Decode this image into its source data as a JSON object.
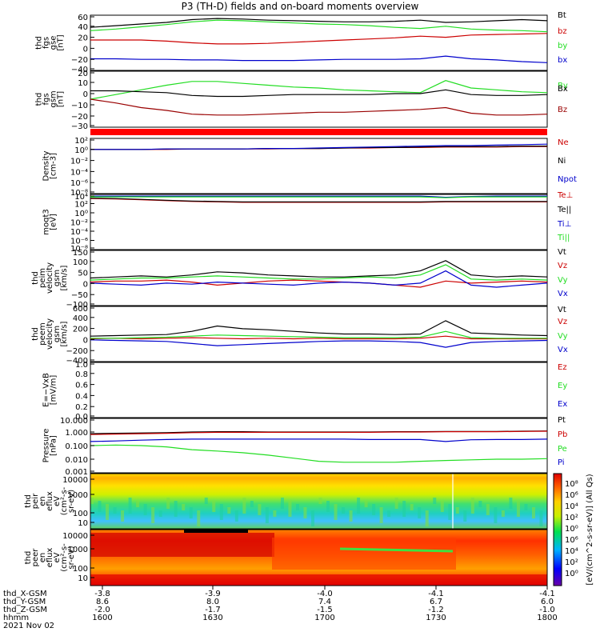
{
  "title": "P3 (TH-D) fields and on-board moments overview",
  "date": "2021 Nov 02",
  "colors": {
    "black": "#000000",
    "red": "#cc0000",
    "green": "#22dd22",
    "blue": "#0000cc",
    "darkred": "#990000"
  },
  "chart_data": [
    {
      "type": "line",
      "ylabel": [
        "thd",
        "fgs",
        "gse",
        "[nT]"
      ],
      "yticks": [
        "60",
        "40",
        "20",
        "0",
        "−20",
        "−40"
      ],
      "ylim": [
        -40,
        60
      ],
      "legend": [
        "Bt",
        "bz",
        "by",
        "bx"
      ],
      "series": [
        {
          "name": "Bt",
          "color": "black",
          "values": [
            38,
            41,
            44,
            47,
            52,
            54,
            53,
            51,
            50,
            49,
            48,
            48,
            49,
            51,
            47,
            48,
            50,
            52,
            50
          ]
        },
        {
          "name": "bz",
          "color": "red",
          "values": [
            15,
            15,
            15,
            13,
            10,
            8,
            8,
            9,
            11,
            13,
            15,
            17,
            19,
            22,
            20,
            24,
            25,
            26,
            27
          ]
        },
        {
          "name": "by",
          "color": "green",
          "values": [
            32,
            35,
            39,
            43,
            48,
            51,
            50,
            48,
            46,
            44,
            43,
            41,
            38,
            36,
            40,
            35,
            33,
            32,
            30
          ]
        },
        {
          "name": "bx",
          "color": "blue",
          "values": [
            -19,
            -19,
            -20,
            -20,
            -21,
            -21,
            -22,
            -22,
            -22,
            -21,
            -20,
            -20,
            -20,
            -19,
            -14,
            -19,
            -21,
            -24,
            -26
          ]
        }
      ]
    },
    {
      "type": "line",
      "ylabel": [
        "thd",
        "fgs",
        "gsm",
        "[nT]"
      ],
      "yticks": [
        "20",
        "10",
        "0",
        "−10",
        "−20",
        "−30"
      ],
      "ylim": [
        -35,
        25
      ],
      "legend": [
        "By",
        "Bx",
        "Bz"
      ],
      "series": [
        {
          "name": "By",
          "color": "green",
          "values": [
            -5,
            0,
            5,
            10,
            14,
            14,
            12,
            10,
            8,
            7,
            5,
            4,
            3,
            2,
            15,
            7,
            5,
            3,
            2
          ]
        },
        {
          "name": "Bx",
          "color": "black",
          "values": [
            4,
            4,
            3,
            2,
            -1,
            -2,
            -2,
            -1,
            0,
            0,
            0,
            0,
            1,
            1,
            5,
            0,
            -1,
            -1,
            0
          ]
        },
        {
          "name": "Bz",
          "color": "darkred",
          "values": [
            -5,
            -9,
            -14,
            -17,
            -21,
            -22,
            -22,
            -21,
            -20,
            -19,
            -19,
            -18,
            -17,
            -16,
            -14,
            -20,
            -22,
            -22,
            -21
          ]
        }
      ]
    },
    {
      "type": "line",
      "ylabel": [
        "Density",
        "[cm-3]"
      ],
      "yticks": [
        "10²",
        "10⁰",
        "10⁻²",
        "10⁻⁴",
        "10⁻⁶",
        "10⁻⁸"
      ],
      "log": true,
      "ylim": [
        -9,
        2.5
      ],
      "legend": [
        "Ne",
        "Ni",
        "Npot"
      ],
      "series": [
        {
          "name": "Ne",
          "color": "red",
          "values": [
            0.2,
            0.2,
            0.2,
            0.2,
            0.3,
            0.3,
            0.3,
            0.3,
            0.4,
            0.4,
            0.5,
            0.5,
            0.6,
            0.6,
            0.7,
            0.7,
            0.7,
            0.8,
            0.8
          ]
        },
        {
          "name": "Ni",
          "color": "black",
          "values": [
            0.2,
            0.2,
            0.2,
            0.3,
            0.3,
            0.3,
            0.3,
            0.4,
            0.4,
            0.4,
            0.5,
            0.6,
            0.6,
            0.7,
            0.8,
            0.8,
            0.8,
            0.9,
            0.9
          ]
        },
        {
          "name": "Npot",
          "color": "blue",
          "values": [
            0.2,
            0.2,
            0.2,
            0.3,
            0.3,
            0.3,
            0.3,
            0.4,
            0.4,
            0.5,
            0.6,
            0.7,
            0.8,
            0.9,
            1.0,
            1.0,
            1.1,
            1.2,
            1.3
          ]
        }
      ]
    },
    {
      "type": "line",
      "ylabel": [
        "moqt3",
        "[eV]"
      ],
      "yticks": [
        "10⁴",
        "10²",
        "10⁰",
        "10⁻²",
        "10⁻⁴",
        "10⁻⁶",
        "10⁻⁸"
      ],
      "log": true,
      "ylim": [
        -9,
        4.3
      ],
      "legend": [
        "Te⊥",
        "Te||",
        "Ti⊥",
        "Ti||"
      ],
      "series": [
        {
          "name": "Te⊥",
          "color": "red",
          "values": [
            3.3,
            3.2,
            3.0,
            2.8,
            2.6,
            2.5,
            2.4,
            2.4,
            2.4,
            2.4,
            2.4,
            2.4,
            2.4,
            2.4,
            2.5,
            2.5,
            2.5,
            2.5,
            2.5
          ]
        },
        {
          "name": "Te||",
          "color": "black",
          "values": [
            3.4,
            3.3,
            3.1,
            2.9,
            2.7,
            2.6,
            2.5,
            2.5,
            2.5,
            2.5,
            2.5,
            2.5,
            2.5,
            2.5,
            2.6,
            2.6,
            2.6,
            2.6,
            2.6
          ]
        },
        {
          "name": "Ti⊥",
          "color": "blue",
          "values": [
            3.9,
            3.9,
            3.9,
            3.9,
            3.9,
            3.9,
            3.9,
            3.9,
            3.9,
            3.9,
            3.9,
            3.9,
            3.9,
            3.9,
            3.6,
            3.8,
            3.9,
            3.9,
            3.9
          ]
        },
        {
          "name": "Ti||",
          "color": "green",
          "values": [
            3.7,
            3.7,
            3.7,
            3.7,
            3.7,
            3.7,
            3.7,
            3.7,
            3.7,
            3.7,
            3.7,
            3.7,
            3.7,
            3.7,
            3.5,
            3.7,
            3.7,
            3.7,
            3.7
          ]
        }
      ]
    },
    {
      "type": "line",
      "ylabel": [
        "thd",
        "peim",
        "velocity",
        "gsm",
        "[km/s]"
      ],
      "yticks": [
        "150",
        "100",
        "50",
        "0",
        "−50",
        "−100"
      ],
      "ylim": [
        -110,
        160
      ],
      "legend": [
        "Vt",
        "Vz",
        "Vy",
        "Vx"
      ],
      "series": [
        {
          "name": "Vt",
          "color": "black",
          "values": [
            25,
            30,
            35,
            30,
            40,
            55,
            50,
            40,
            35,
            30,
            30,
            35,
            40,
            60,
            110,
            40,
            30,
            35,
            30
          ]
        },
        {
          "name": "Vz",
          "color": "red",
          "values": [
            5,
            10,
            10,
            15,
            5,
            -10,
            0,
            10,
            15,
            10,
            5,
            0,
            -10,
            -20,
            10,
            0,
            5,
            10,
            5
          ]
        },
        {
          "name": "Vy",
          "color": "green",
          "values": [
            15,
            20,
            25,
            25,
            30,
            35,
            30,
            25,
            20,
            20,
            25,
            30,
            25,
            40,
            90,
            20,
            15,
            20,
            15
          ]
        },
        {
          "name": "Vx",
          "color": "blue",
          "values": [
            0,
            -5,
            -10,
            0,
            -5,
            5,
            0,
            -5,
            -10,
            0,
            5,
            0,
            -10,
            0,
            60,
            -10,
            -20,
            -10,
            0
          ]
        }
      ]
    },
    {
      "type": "line",
      "ylabel": [
        "thd",
        "peem",
        "velocity",
        "gsm",
        "[km/s]"
      ],
      "yticks": [
        "600",
        "400",
        "200",
        "0",
        "−200",
        "−400"
      ],
      "ylim": [
        -420,
        620
      ],
      "legend": [
        "Vt",
        "Vz",
        "Vy",
        "Vx"
      ],
      "series": [
        {
          "name": "Vt",
          "color": "black",
          "values": [
            60,
            70,
            80,
            90,
            150,
            250,
            200,
            180,
            150,
            120,
            100,
            100,
            90,
            100,
            350,
            120,
            100,
            80,
            70
          ]
        },
        {
          "name": "Vz",
          "color": "red",
          "values": [
            10,
            20,
            10,
            20,
            30,
            20,
            10,
            20,
            10,
            20,
            10,
            10,
            10,
            20,
            60,
            10,
            10,
            10,
            10
          ]
        },
        {
          "name": "Vy",
          "color": "green",
          "values": [
            20,
            20,
            30,
            40,
            60,
            80,
            70,
            60,
            50,
            40,
            30,
            30,
            30,
            40,
            150,
            30,
            20,
            20,
            20
          ]
        },
        {
          "name": "Vx",
          "color": "blue",
          "values": [
            -10,
            -20,
            -30,
            -40,
            -80,
            -120,
            -100,
            -80,
            -60,
            -40,
            -30,
            -30,
            -40,
            -60,
            -150,
            -60,
            -40,
            -30,
            -20
          ]
        }
      ]
    },
    {
      "type": "line",
      "ylabel": [
        "E=−VxB",
        "[mV/m]"
      ],
      "yticks": [
        "1.0",
        "0.8",
        "0.6",
        "0.4",
        "0.2",
        "0.0"
      ],
      "ylim": [
        0,
        1
      ],
      "legend": [
        "Ez",
        "Ey",
        "Ex"
      ],
      "series": []
    },
    {
      "type": "line",
      "ylabel": [
        "Pressure",
        "[nPa]"
      ],
      "yticks": [
        "10.000",
        "1.000",
        "0.100",
        "0.010",
        "0.001"
      ],
      "log": true,
      "ylim": [
        -3,
        1
      ],
      "legend": [
        "Pt",
        "Pb",
        "Pe",
        "Pi"
      ],
      "series": [
        {
          "name": "Pt",
          "color": "black",
          "values": [
            0.75,
            0.8,
            0.85,
            0.9,
            1.0,
            1.05,
            1.05,
            1.0,
            1.0,
            1.0,
            1.0,
            1.0,
            1.05,
            1.05,
            1.1,
            1.1,
            1.1,
            1.15,
            1.2
          ]
        },
        {
          "name": "Pb",
          "color": "red",
          "values": [
            0.65,
            0.7,
            0.75,
            0.8,
            0.9,
            0.95,
            0.95,
            0.95,
            0.95,
            0.95,
            0.95,
            0.95,
            1.0,
            1.0,
            1.05,
            1.05,
            1.05,
            1.1,
            1.15
          ]
        },
        {
          "name": "Pe",
          "color": "green",
          "values": [
            0.1,
            0.11,
            0.1,
            0.08,
            0.05,
            0.04,
            0.03,
            0.02,
            0.012,
            0.007,
            0.006,
            0.006,
            0.006,
            0.007,
            0.008,
            0.009,
            0.01,
            0.01,
            0.011
          ]
        },
        {
          "name": "Pi",
          "color": "blue",
          "values": [
            0.2,
            0.22,
            0.25,
            0.28,
            0.3,
            0.3,
            0.3,
            0.3,
            0.3,
            0.3,
            0.3,
            0.28,
            0.28,
            0.28,
            0.2,
            0.27,
            0.28,
            0.28,
            0.3
          ]
        }
      ]
    },
    {
      "type": "heatmap",
      "ylabel": [
        "thd",
        "peir",
        "en",
        "eflux",
        "eV",
        "(cm²-s-",
        "sr-eV)"
      ],
      "yticks": [
        "10000",
        "1000",
        "100",
        "10"
      ]
    },
    {
      "type": "heatmap",
      "ylabel": [
        "thd",
        "peer",
        "en",
        "eflux",
        "eV",
        "(cm²-s-",
        "sr-eV)"
      ],
      "yticks": [
        "10000",
        "1000",
        "100",
        "10"
      ]
    }
  ],
  "colorbar": {
    "label": "[eV/(cm^2-s-sr-eV)] (All Qs)",
    "ticks": [
      "10⁸",
      "10⁶",
      "10⁴",
      "10²",
      "10⁰"
    ]
  },
  "xaxis": {
    "rows": [
      {
        "name": "thd_X-GSM",
        "values": [
          "-3.8",
          "-3.9",
          "-4.0",
          "-4.1",
          "-4.1"
        ]
      },
      {
        "name": "thd_Y-GSM",
        "values": [
          "8.6",
          "8.0",
          "7.4",
          "6.7",
          "6.0"
        ]
      },
      {
        "name": "thd_Z-GSM",
        "values": [
          "-2.0",
          "-1.7",
          "-1.5",
          "-1.2",
          "-1.0"
        ]
      },
      {
        "name": "hhmm",
        "values": [
          "1600",
          "1630",
          "1700",
          "1730",
          "1800"
        ]
      }
    ]
  }
}
